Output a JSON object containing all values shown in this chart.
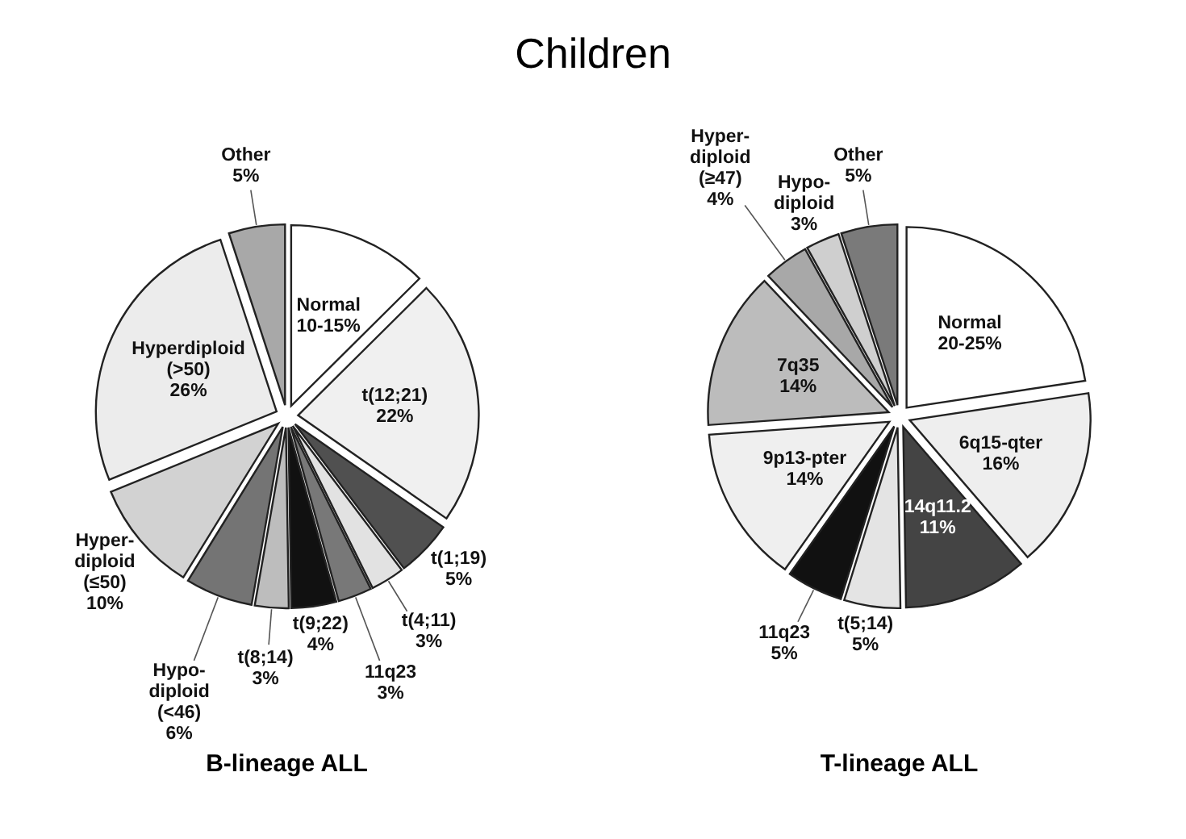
{
  "chart_data": [
    {
      "type": "pie",
      "title": "B-lineage ALL",
      "annotations": [
        "Children"
      ],
      "categories": [
        "Normal\n10-15%",
        "t(12;21)",
        "t(1;19)",
        "t(4;11)",
        "11q23",
        "t(9;22)",
        "t(8;14)",
        "Hypo-\ndiploid\n(<46)",
        "Hyper-\ndiploid\n(≤50)",
        "Hyperdiploid\n(>50)",
        "Other"
      ],
      "values": [
        12.5,
        22,
        5,
        3,
        3,
        4,
        3,
        6,
        10,
        26,
        5
      ],
      "value_labels": [
        null,
        "22%",
        "5%",
        "3%",
        "3%",
        "4%",
        "3%",
        "6%",
        "10%",
        "26%",
        "5%"
      ],
      "colors": [
        "#ffffff",
        "#f0f0f0",
        "#505050",
        "#e2e2e2",
        "#787878",
        "#111111",
        "#bdbdbd",
        "#747474",
        "#d2d2d2",
        "#ececec",
        "#a8a8a8"
      ]
    },
    {
      "type": "pie",
      "title": "T-lineage ALL",
      "categories": [
        "Normal\n20-25%",
        "6q15-qter",
        "14q11.2",
        "t(5;14)",
        "11q23",
        "9p13-pter",
        "7q35",
        "Hyper-\ndiploid\n(≥47)",
        "Hypo-\ndiploid",
        "Other"
      ],
      "values": [
        22.5,
        16,
        11,
        5,
        5,
        14,
        14,
        4,
        3,
        5
      ],
      "value_labels": [
        null,
        "16%",
        "11%",
        "5%",
        "5%",
        "14%",
        "14%",
        "4%",
        "3%",
        "5%"
      ],
      "colors": [
        "#ffffff",
        "#eeeeee",
        "#444444",
        "#e4e4e4",
        "#111111",
        "#efefef",
        "#bcbcbc",
        "#a8a8a8",
        "#cfcfcf",
        "#7a7a7a"
      ]
    }
  ]
}
